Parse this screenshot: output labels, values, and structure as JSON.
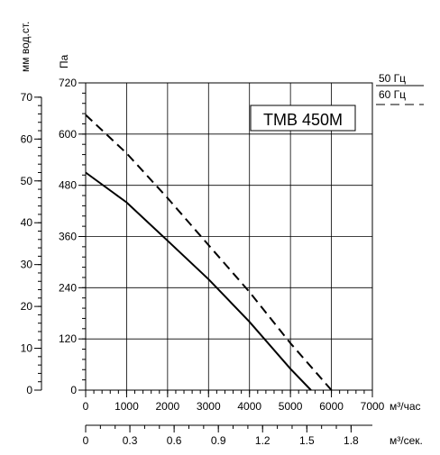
{
  "chart_data": {
    "type": "line",
    "model_label": "ТМВ 450М",
    "left_axis_label": "мм вод.ст.",
    "left_axis_ticks": [
      "0",
      "10",
      "20",
      "30",
      "40",
      "50",
      "60",
      "70"
    ],
    "pa_axis_label": "Па",
    "pa_axis_ticks": [
      "0",
      "120",
      "240",
      "360",
      "480",
      "600",
      "720"
    ],
    "ylim": [
      0,
      720
    ],
    "x_axis_label": "м³/час",
    "x_ticks": [
      "0",
      "1000",
      "2000",
      "3000",
      "4000",
      "5000",
      "6000",
      "7000"
    ],
    "xlim": [
      0,
      7000
    ],
    "x2_axis_label": "м³/сек.",
    "x2_ticks": [
      {
        "value": 0,
        "label": "0"
      },
      {
        "value": 0.3,
        "label": "0.3"
      },
      {
        "value": 0.6,
        "label": "0.6"
      },
      {
        "value": 0.9,
        "label": "0.9"
      },
      {
        "value": 1.2,
        "label": "1.2"
      },
      {
        "value": 1.5,
        "label": "1.5"
      },
      {
        "value": 1.8,
        "label": "1.8"
      }
    ],
    "legend": [
      {
        "label": "50 Гц",
        "style": "solid"
      },
      {
        "label": "60 Гц",
        "style": "dashed"
      }
    ],
    "series": [
      {
        "name": "50 Гц",
        "style": "solid",
        "x": [
          0,
          1000,
          2000,
          3000,
          4000,
          5000,
          5500
        ],
        "y": [
          510,
          440,
          350,
          260,
          160,
          50,
          0
        ]
      },
      {
        "name": "60 Гц",
        "style": "dashed",
        "x": [
          0,
          1000,
          2000,
          3000,
          4000,
          5000,
          6000
        ],
        "y": [
          645,
          555,
          450,
          340,
          230,
          110,
          0
        ]
      }
    ],
    "grid": true
  }
}
